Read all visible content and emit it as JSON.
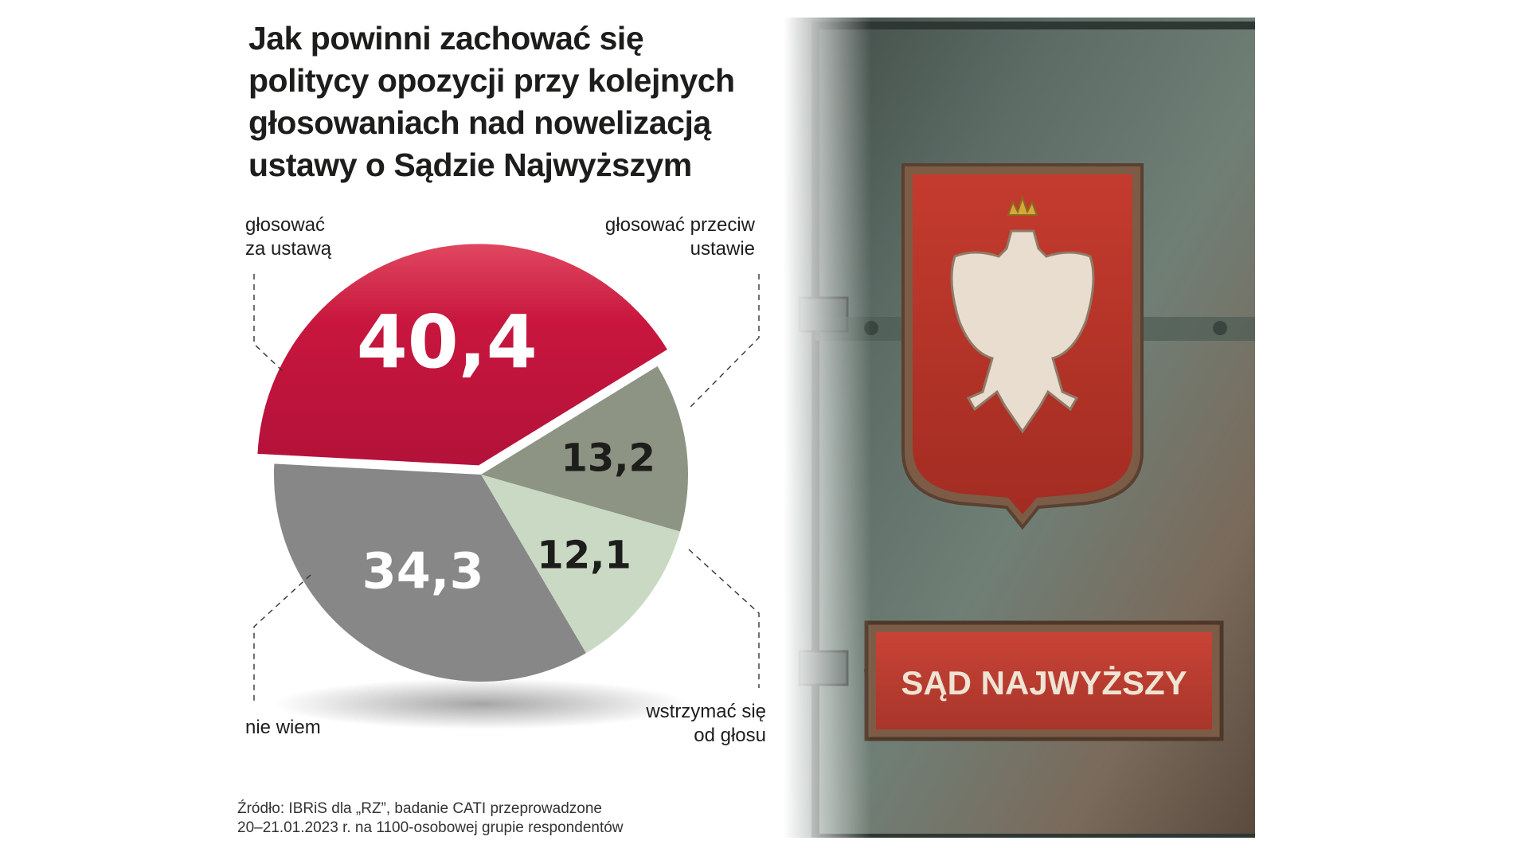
{
  "title": "Jak powinni zachować się politycy opozycji przy kolejnych głosowaniach nad nowelizacją ustawy o Sądzie Najwyższym",
  "source": {
    "line1": "Źródło: IBRiS dla „RZ”, badanie CATI przeprowadzone",
    "line2": "20–21.01.2023 r. na 1100-osobowej grupie respondentów"
  },
  "chart_data": {
    "type": "pie",
    "title": "Jak powinni zachować się politycy opozycji przy kolejnych głosowaniach nad nowelizacją ustawy o Sądzie Najwyższym",
    "slices": [
      {
        "label": "głosować za ustawą",
        "value": 40.4,
        "display": "40,4",
        "color": "#c8163e",
        "exploded": true
      },
      {
        "label": "głosować przeciw ustawie",
        "value": 13.2,
        "display": "13,2",
        "color": "#8e9484"
      },
      {
        "label": "wstrzymać się od głosu",
        "value": 12.1,
        "display": "12,1",
        "color": "#c9d9c3"
      },
      {
        "label": "nie wiem",
        "value": 34.3,
        "display": "34,3",
        "color": "#878787"
      }
    ]
  },
  "labels": {
    "za_line1": "głosować",
    "za_line2": "za ustawą",
    "przeciw_line1": "głosować przeciw",
    "przeciw_line2": "ustawie",
    "wstrzymac_line1": "wstrzymać się",
    "wstrzymac_line2": "od głosu",
    "niewiem": "nie wiem"
  },
  "photo": {
    "plaque_text": "SĄD NAJWYŻSZY"
  },
  "colors": {
    "red": "#c8163e",
    "dark_gray": "#878787",
    "olive_gray": "#8e9484",
    "light_green": "#c9d9c3",
    "text": "#1d1d1b"
  }
}
